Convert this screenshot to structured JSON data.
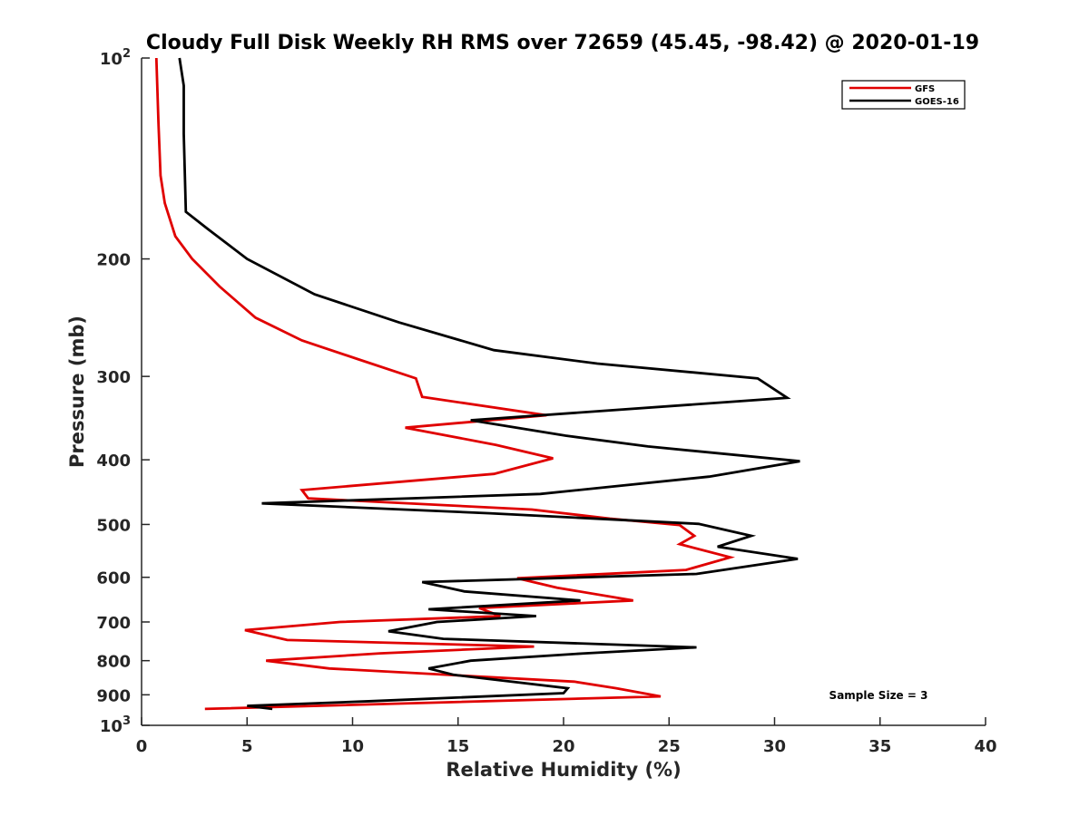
{
  "chart_data": {
    "type": "line",
    "title": "Cloudy Full Disk Weekly RH RMS over 72659 (45.45, -98.42) @ 2020-01-19",
    "xlabel": "Relative Humidity (%)",
    "ylabel": "Pressure (mb)",
    "xlim": [
      0,
      40
    ],
    "ylim": [
      100,
      1000
    ],
    "y_scale": "log",
    "y_reversed": true,
    "x_ticks": [
      "0",
      "5",
      "10",
      "15",
      "20",
      "25",
      "30",
      "35",
      "40"
    ],
    "y_ticks": [
      {
        "value": 100,
        "label": "10",
        "sup": "2"
      },
      {
        "value": 200,
        "label": "200",
        "sup": ""
      },
      {
        "value": 300,
        "label": "300",
        "sup": ""
      },
      {
        "value": 400,
        "label": "400",
        "sup": ""
      },
      {
        "value": 500,
        "label": "500",
        "sup": ""
      },
      {
        "value": 600,
        "label": "600",
        "sup": ""
      },
      {
        "value": 700,
        "label": "700",
        "sup": ""
      },
      {
        "value": 800,
        "label": "800",
        "sup": ""
      },
      {
        "value": 900,
        "label": "900",
        "sup": ""
      },
      {
        "value": 1000,
        "label": "10",
        "sup": "3"
      }
    ],
    "grid": false,
    "legend_position": "top-right",
    "annotation": "Sample Size = 3",
    "series": [
      {
        "name": "GFS",
        "color": "#e00000",
        "points": [
          [
            0.7,
            100
          ],
          [
            0.8,
            125
          ],
          [
            0.9,
            150
          ],
          [
            1.1,
            165
          ],
          [
            1.6,
            185
          ],
          [
            2.4,
            200
          ],
          [
            3.7,
            220
          ],
          [
            5.4,
            245
          ],
          [
            7.6,
            265
          ],
          [
            10.3,
            283
          ],
          [
            13.0,
            302
          ],
          [
            13.3,
            322
          ],
          [
            19.2,
            343
          ],
          [
            12.5,
            358
          ],
          [
            16.8,
            380
          ],
          [
            19.5,
            398
          ],
          [
            16.7,
            420
          ],
          [
            7.6,
            444
          ],
          [
            7.9,
            457
          ],
          [
            18.5,
            475
          ],
          [
            22.2,
            490
          ],
          [
            25.5,
            501
          ],
          [
            26.2,
            520
          ],
          [
            25.5,
            535
          ],
          [
            27.9,
            560
          ],
          [
            25.8,
            585
          ],
          [
            17.8,
            602
          ],
          [
            19.7,
            622
          ],
          [
            23.3,
            650
          ],
          [
            16.0,
            667
          ],
          [
            17.0,
            686
          ],
          [
            9.4,
            700
          ],
          [
            4.9,
            720
          ],
          [
            6.9,
            745
          ],
          [
            18.6,
            762
          ],
          [
            11.3,
            780
          ],
          [
            5.9,
            800
          ],
          [
            8.9,
            822
          ],
          [
            20.5,
            860
          ],
          [
            22.5,
            880
          ],
          [
            24.6,
            905
          ],
          [
            3.0,
            945
          ]
        ]
      },
      {
        "name": "GOES-16",
        "color": "#000000",
        "points": [
          [
            1.8,
            100
          ],
          [
            2.0,
            110
          ],
          [
            2.0,
            130
          ],
          [
            2.1,
            170
          ],
          [
            3.1,
            180
          ],
          [
            5.0,
            200
          ],
          [
            8.2,
            226
          ],
          [
            12.2,
            249
          ],
          [
            16.7,
            274
          ],
          [
            21.6,
            287
          ],
          [
            29.2,
            302
          ],
          [
            30.6,
            323
          ],
          [
            15.6,
            349
          ],
          [
            20.1,
            368
          ],
          [
            24.0,
            382
          ],
          [
            31.2,
            402
          ],
          [
            26.9,
            424
          ],
          [
            18.9,
            450
          ],
          [
            5.7,
            465
          ],
          [
            16.5,
            481
          ],
          [
            26.4,
            499
          ],
          [
            28.9,
            520
          ],
          [
            27.3,
            540
          ],
          [
            31.1,
            563
          ],
          [
            26.3,
            593
          ],
          [
            13.3,
            610
          ],
          [
            15.3,
            630
          ],
          [
            20.8,
            650
          ],
          [
            13.6,
            670
          ],
          [
            18.7,
            686
          ],
          [
            14.0,
            700
          ],
          [
            11.7,
            723
          ],
          [
            14.3,
            742
          ],
          [
            26.3,
            764
          ],
          [
            21.0,
            780
          ],
          [
            15.6,
            800
          ],
          [
            13.6,
            822
          ],
          [
            14.8,
            840
          ],
          [
            20.2,
            880
          ],
          [
            20.0,
            895
          ],
          [
            10.9,
            920
          ],
          [
            5.0,
            935
          ],
          [
            6.2,
            945
          ]
        ]
      }
    ]
  }
}
